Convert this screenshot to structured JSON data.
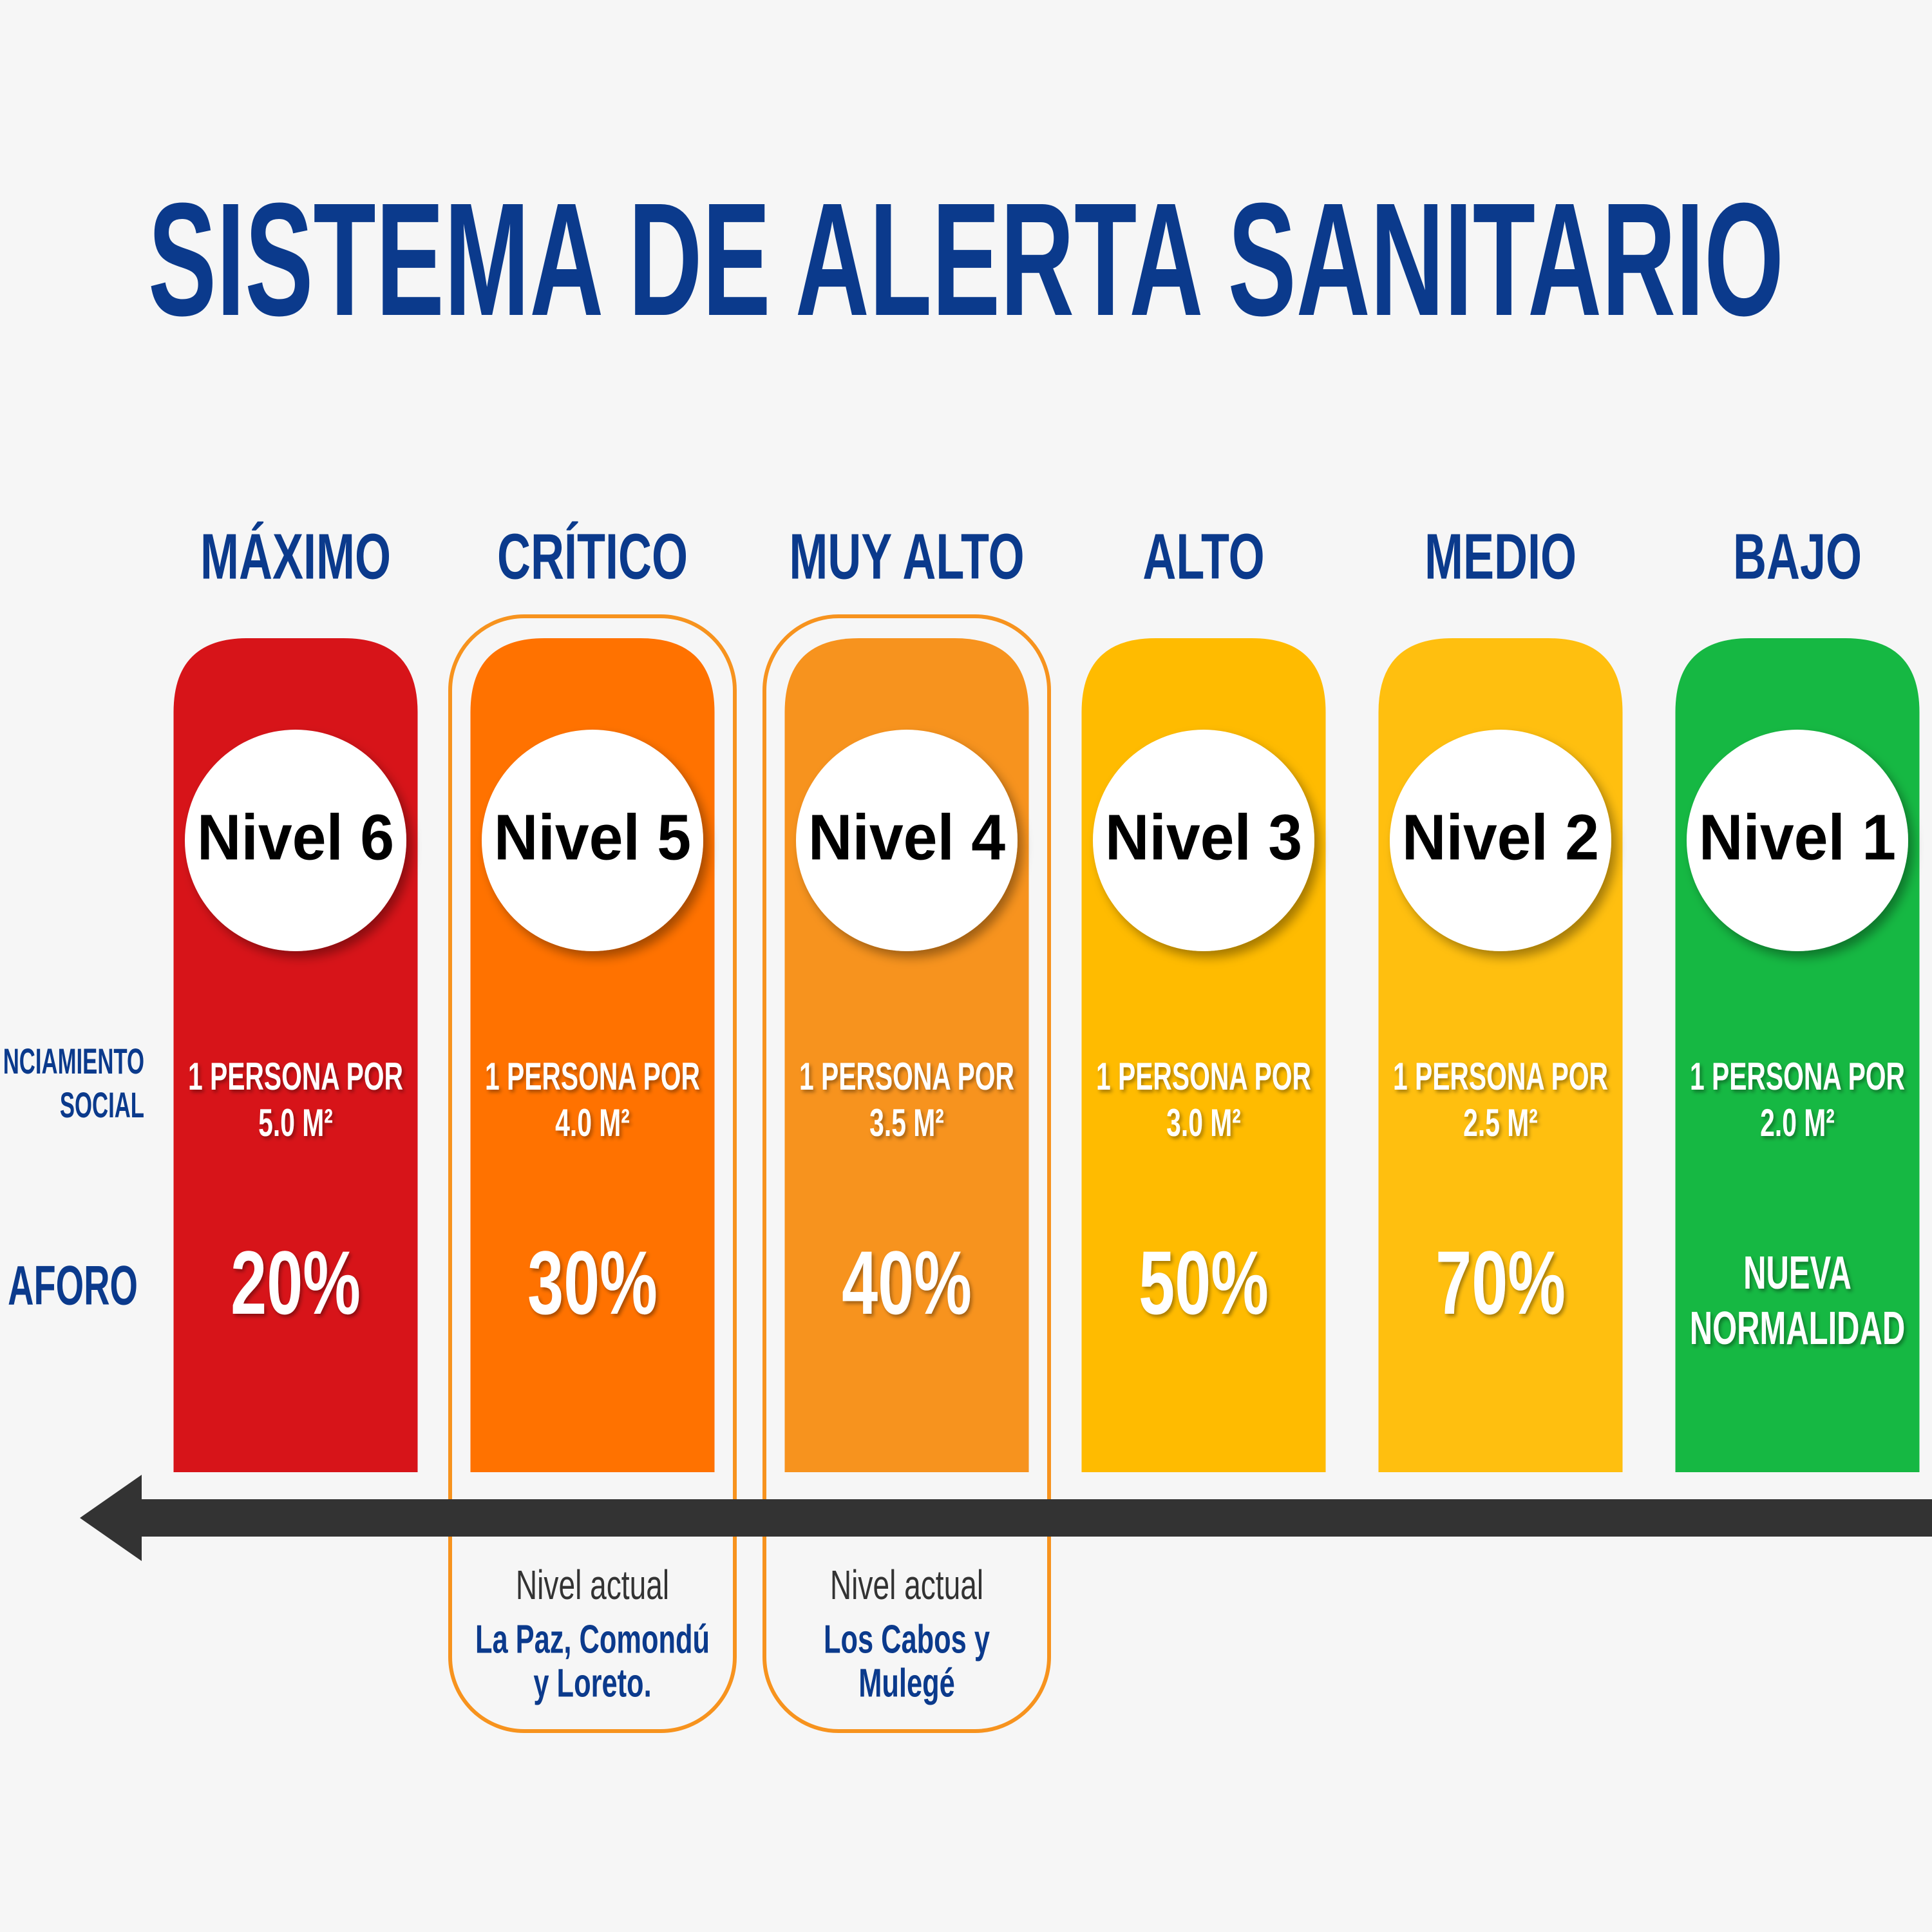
{
  "header": {
    "title": "SISTEMA DE ALERTA SANITARIO"
  },
  "row_labels": {
    "distance": [
      "NCIAMIENTO",
      "SOCIAL"
    ],
    "capacity": "AFORO"
  },
  "levels": [
    {
      "name": "MÁXIMO",
      "label": "Nivel 6",
      "color": "#d71419",
      "distance": [
        "1 PERSONA POR",
        "5.0 M²"
      ],
      "capacity": [
        "20%"
      ]
    },
    {
      "name": "CRÍTICO",
      "label": "Nivel 5",
      "color": "#ff7200",
      "distance": [
        "1 PERSONA POR",
        "4.0 M²"
      ],
      "capacity": [
        "30%"
      ],
      "current": {
        "heading": "Nivel actual",
        "lines": [
          "La Paz, Comondú",
          "y Loreto."
        ]
      }
    },
    {
      "name": "MUY ALTO",
      "label": "Nivel 4",
      "color": "#f7931e",
      "distance": [
        "1 PERSONA POR",
        "3.5 M²"
      ],
      "capacity": [
        "40%"
      ],
      "current": {
        "heading": "Nivel actual",
        "lines": [
          "Los Cabos y",
          "Mulegé"
        ]
      }
    },
    {
      "name": "ALTO",
      "label": "Nivel 3",
      "color": "#ffbb00",
      "distance": [
        "1 PERSONA POR",
        "3.0 M²"
      ],
      "capacity": [
        "50%"
      ]
    },
    {
      "name": "MEDIO",
      "label": "Nivel 2",
      "color": "#ffbf0f",
      "distance": [
        "1 PERSONA POR",
        "2.5 M²"
      ],
      "capacity": [
        "70%"
      ]
    },
    {
      "name": "BAJO",
      "label": "Nivel 1",
      "color": "#16b843",
      "distance": [
        "1 PERSONA POR",
        "2.0 M²"
      ],
      "capacity": [
        "NUEVA",
        "NORMALIDAD"
      ]
    }
  ]
}
